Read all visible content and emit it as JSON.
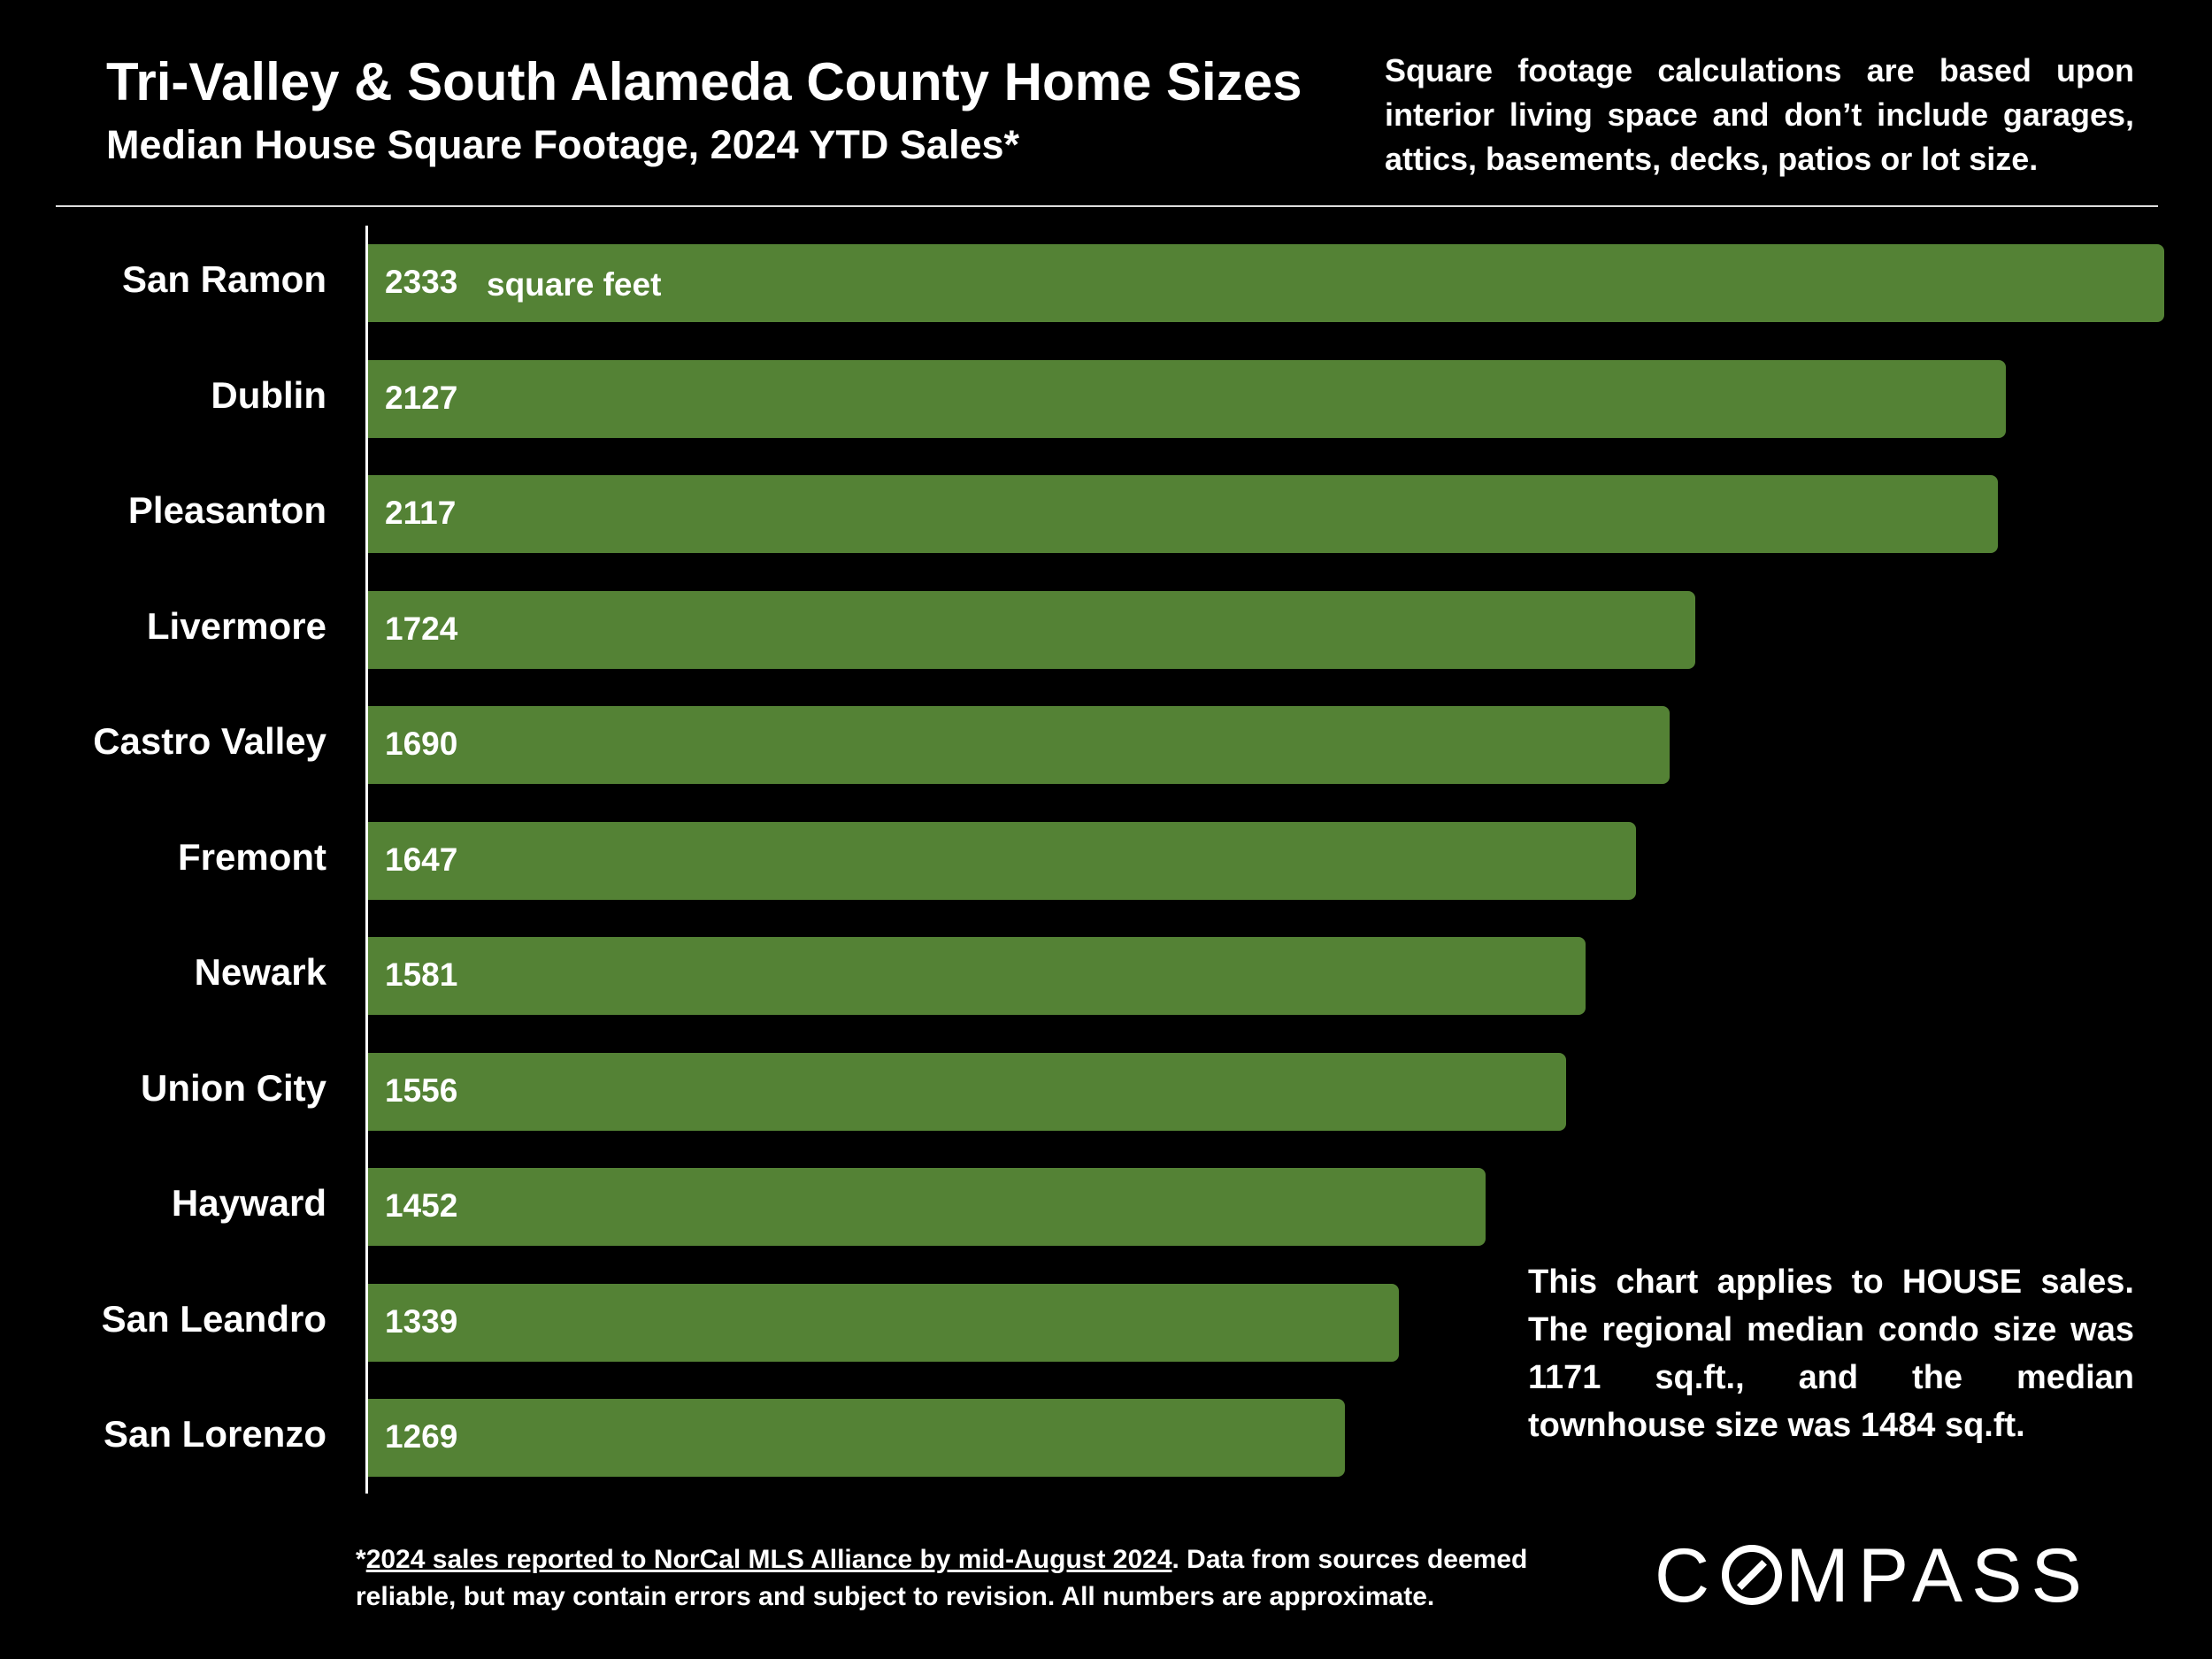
{
  "header": {
    "title": "Tri-Valley & South Alameda County Home Sizes",
    "subtitle": "Median House Square Footage, 2024 YTD Sales*",
    "note": "Square footage calculations are based upon interior living space and don’t include garages, attics, basements, decks, patios or lot size."
  },
  "chart_data": {
    "type": "bar",
    "orientation": "horizontal",
    "categories": [
      "San Ramon",
      "Dublin",
      "Pleasanton",
      "Livermore",
      "Castro Valley",
      "Fremont",
      "Newark",
      "Union City",
      "Hayward",
      "San Leandro",
      "San Lorenzo"
    ],
    "values": [
      2333,
      2127,
      2117,
      1724,
      1690,
      1647,
      1581,
      1556,
      1452,
      1339,
      1269
    ],
    "unit_label": "square feet",
    "colors": {
      "bar": "#548235",
      "background": "#000000",
      "text": "#ffffff"
    }
  },
  "annotations": {
    "house_note": "This chart applies to HOUSE sales. The regional median condo size was 1171 sq.ft., and the median townhouse size was 1484 sq.ft."
  },
  "footer": {
    "asterisk": "*",
    "source_link": "2024 sales reported to NorCal MLS Alliance by mid-August 2024",
    "disclaimer": ". Data from sources deemed reliable, but may contain errors and subject to revision. All numbers are approximate."
  },
  "logo": {
    "text_before": "C",
    "text_after": "MPASS"
  }
}
